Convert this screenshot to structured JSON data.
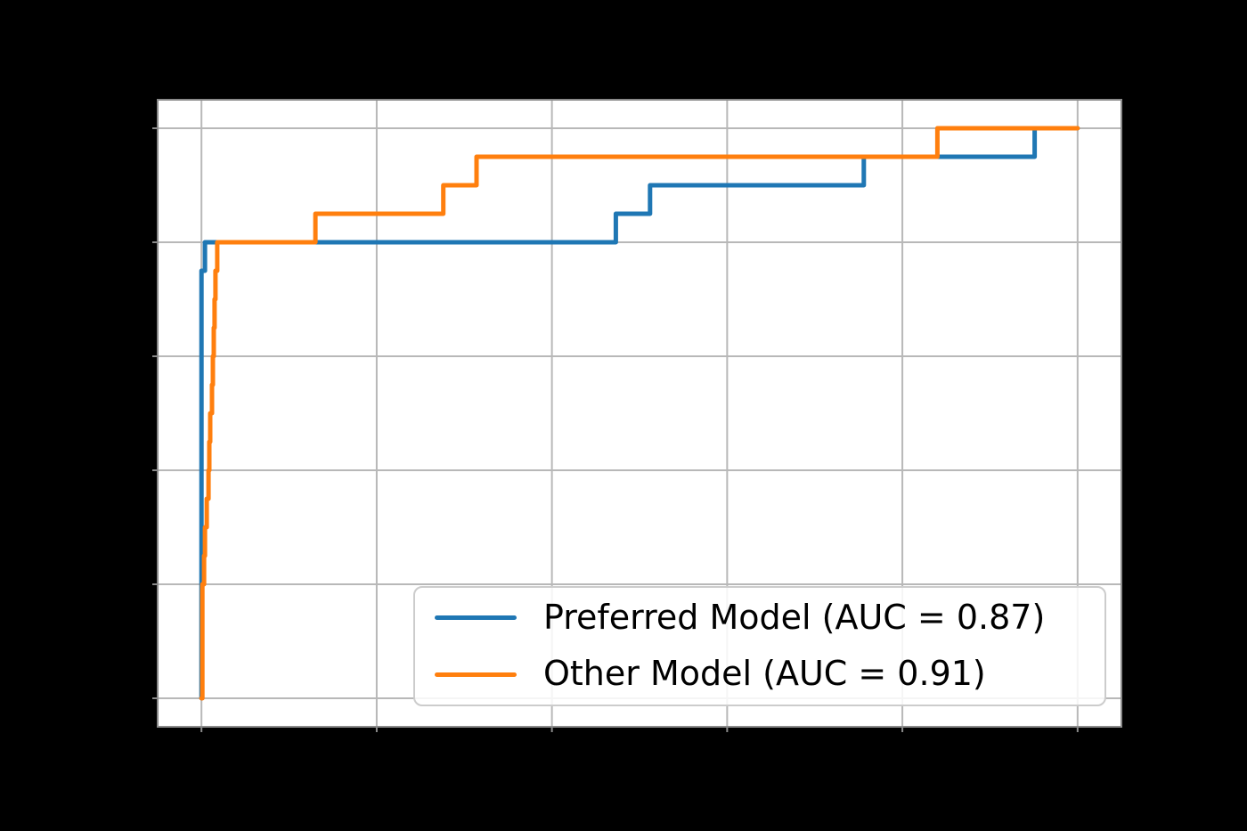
{
  "figure": {
    "background_color": "#000000",
    "plot_background_color": "#ffffff",
    "grid_color": "#b8b8b8",
    "spine_color": "#8a8a8a",
    "tick_color": "#8a8a8a",
    "line_width": 5
  },
  "chart_data": {
    "type": "line",
    "subtype": "roc-step-curves",
    "title": "",
    "xlabel": "",
    "ylabel": "",
    "xlim": [
      -0.05,
      1.05
    ],
    "ylim": [
      -0.05,
      1.05
    ],
    "xticks": [
      0.0,
      0.2,
      0.4,
      0.6,
      0.8,
      1.0
    ],
    "yticks": [
      0.0,
      0.2,
      0.4,
      0.6,
      0.8,
      1.0
    ],
    "grid": true,
    "legend_position": "lower right",
    "series": [
      {
        "name": "Preferred Model (AUC = 0.87)",
        "model": "Preferred Model",
        "auc": 0.87,
        "color": "#1f77b4",
        "points": [
          [
            0.0,
            0.0
          ],
          [
            0.0,
            0.75
          ],
          [
            0.004,
            0.75
          ],
          [
            0.004,
            0.8
          ],
          [
            0.473,
            0.8
          ],
          [
            0.473,
            0.85
          ],
          [
            0.512,
            0.85
          ],
          [
            0.512,
            0.9
          ],
          [
            0.756,
            0.9
          ],
          [
            0.756,
            0.95
          ],
          [
            0.951,
            0.95
          ],
          [
            0.951,
            1.0
          ],
          [
            1.0,
            1.0
          ]
        ]
      },
      {
        "name": "Other Model (AUC = 0.91)",
        "model": "Other Model",
        "auc": 0.91,
        "color": "#ff7f0e",
        "points": [
          [
            0.0,
            0.0
          ],
          [
            0.001,
            0.0
          ],
          [
            0.001,
            0.2
          ],
          [
            0.003,
            0.2
          ],
          [
            0.003,
            0.25
          ],
          [
            0.004,
            0.25
          ],
          [
            0.004,
            0.3
          ],
          [
            0.006,
            0.3
          ],
          [
            0.006,
            0.35
          ],
          [
            0.008,
            0.35
          ],
          [
            0.008,
            0.4
          ],
          [
            0.009,
            0.4
          ],
          [
            0.009,
            0.45
          ],
          [
            0.01,
            0.45
          ],
          [
            0.01,
            0.5
          ],
          [
            0.012,
            0.5
          ],
          [
            0.012,
            0.55
          ],
          [
            0.013,
            0.55
          ],
          [
            0.013,
            0.6
          ],
          [
            0.014,
            0.6
          ],
          [
            0.014,
            0.65
          ],
          [
            0.015,
            0.65
          ],
          [
            0.015,
            0.7
          ],
          [
            0.016,
            0.7
          ],
          [
            0.016,
            0.75
          ],
          [
            0.018,
            0.75
          ],
          [
            0.018,
            0.8
          ],
          [
            0.13,
            0.8
          ],
          [
            0.13,
            0.85
          ],
          [
            0.276,
            0.85
          ],
          [
            0.276,
            0.9
          ],
          [
            0.314,
            0.9
          ],
          [
            0.314,
            0.95
          ],
          [
            0.84,
            0.95
          ],
          [
            0.84,
            1.0
          ],
          [
            1.0,
            1.0
          ]
        ]
      }
    ]
  },
  "legend": {
    "items": [
      {
        "label": "Preferred Model (AUC = 0.87)",
        "color": "#1f77b4"
      },
      {
        "label": "Other Model (AUC = 0.91)",
        "color": "#ff7f0e"
      }
    ]
  }
}
